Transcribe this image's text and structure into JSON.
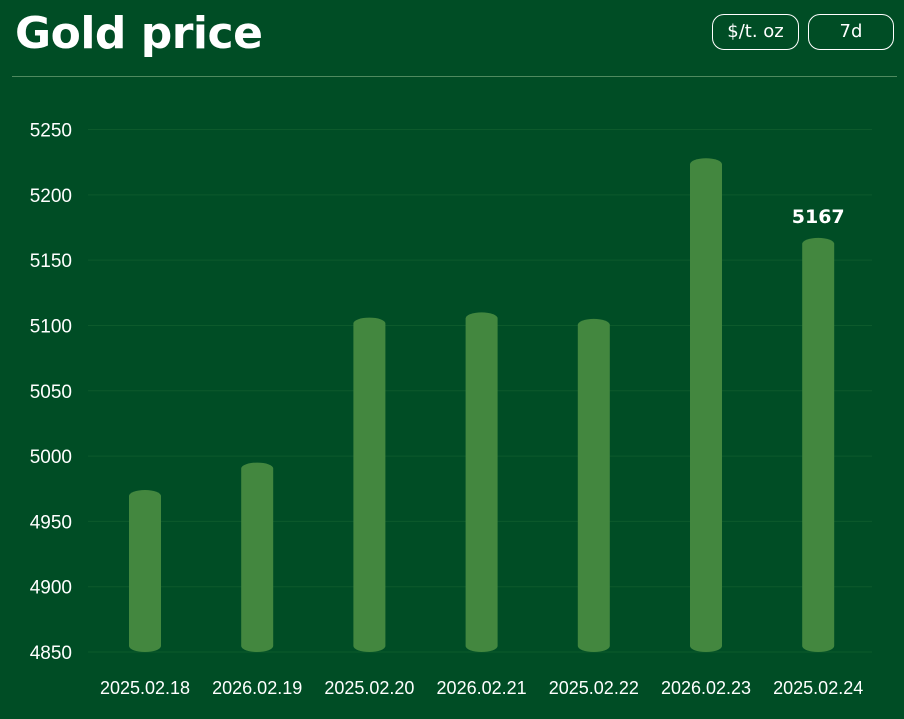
{
  "header": {
    "title": "Gold price",
    "unit_button": "$/t. oz",
    "range_button": "7d"
  },
  "colors": {
    "background": "#004d25",
    "bar": "#43873f",
    "grid": "#0d5a2c"
  },
  "chart_data": {
    "type": "bar",
    "title": "Gold price",
    "xlabel": "",
    "ylabel": "",
    "categories": [
      "2025.02.18",
      "2026.02.19",
      "2025.02.20",
      "2026.02.21",
      "2025.02.22",
      "2026.02.23",
      "2025.02.24"
    ],
    "values": [
      4974,
      4995,
      5106,
      5110,
      5105,
      5228,
      5167
    ],
    "ylim": [
      4850,
      5260
    ],
    "yticks": [
      4850,
      4900,
      4950,
      5000,
      5050,
      5100,
      5150,
      5200,
      5250
    ],
    "grid": true,
    "data_labels": [
      {
        "index": 6,
        "text": "5167"
      }
    ]
  }
}
